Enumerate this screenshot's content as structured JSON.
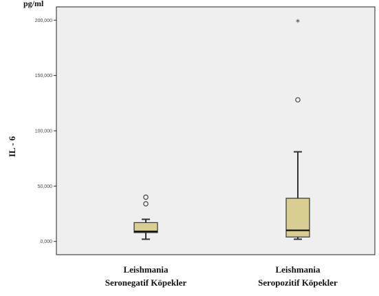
{
  "chart_data": {
    "type": "box",
    "unit_label": "pg/ml",
    "ylabel": "IL - 6",
    "ylim": [
      -12,
      212
    ],
    "yticks": [
      {
        "value": 0,
        "label": "0,000"
      },
      {
        "value": 50,
        "label": "50,000"
      },
      {
        "value": 100,
        "label": "100,000"
      },
      {
        "value": 150,
        "label": "150,000"
      },
      {
        "value": 200,
        "label": "200,000"
      }
    ],
    "categories": [
      {
        "line1": "Leishmania",
        "line2": "Seronegatif Köpekler"
      },
      {
        "line1": "Leishmania",
        "line2": "Seropozitif Köpekler"
      }
    ],
    "boxes": [
      {
        "whisker_low": 2,
        "q1": 8,
        "median": 9,
        "q3": 17,
        "whisker_high": 20,
        "outliers": [
          {
            "value": 34,
            "marker": "circle"
          },
          {
            "value": 40,
            "marker": "circle"
          }
        ]
      },
      {
        "whisker_low": 2,
        "q1": 4,
        "median": 10,
        "q3": 39,
        "whisker_high": 81,
        "outliers": [
          {
            "value": 128,
            "marker": "circle"
          },
          {
            "value": 198,
            "marker": "star"
          }
        ]
      }
    ],
    "colors": {
      "plot_bg": "#efefef",
      "box_fill": "#d8cd92",
      "box_stroke": "#333333"
    },
    "grid": false
  }
}
